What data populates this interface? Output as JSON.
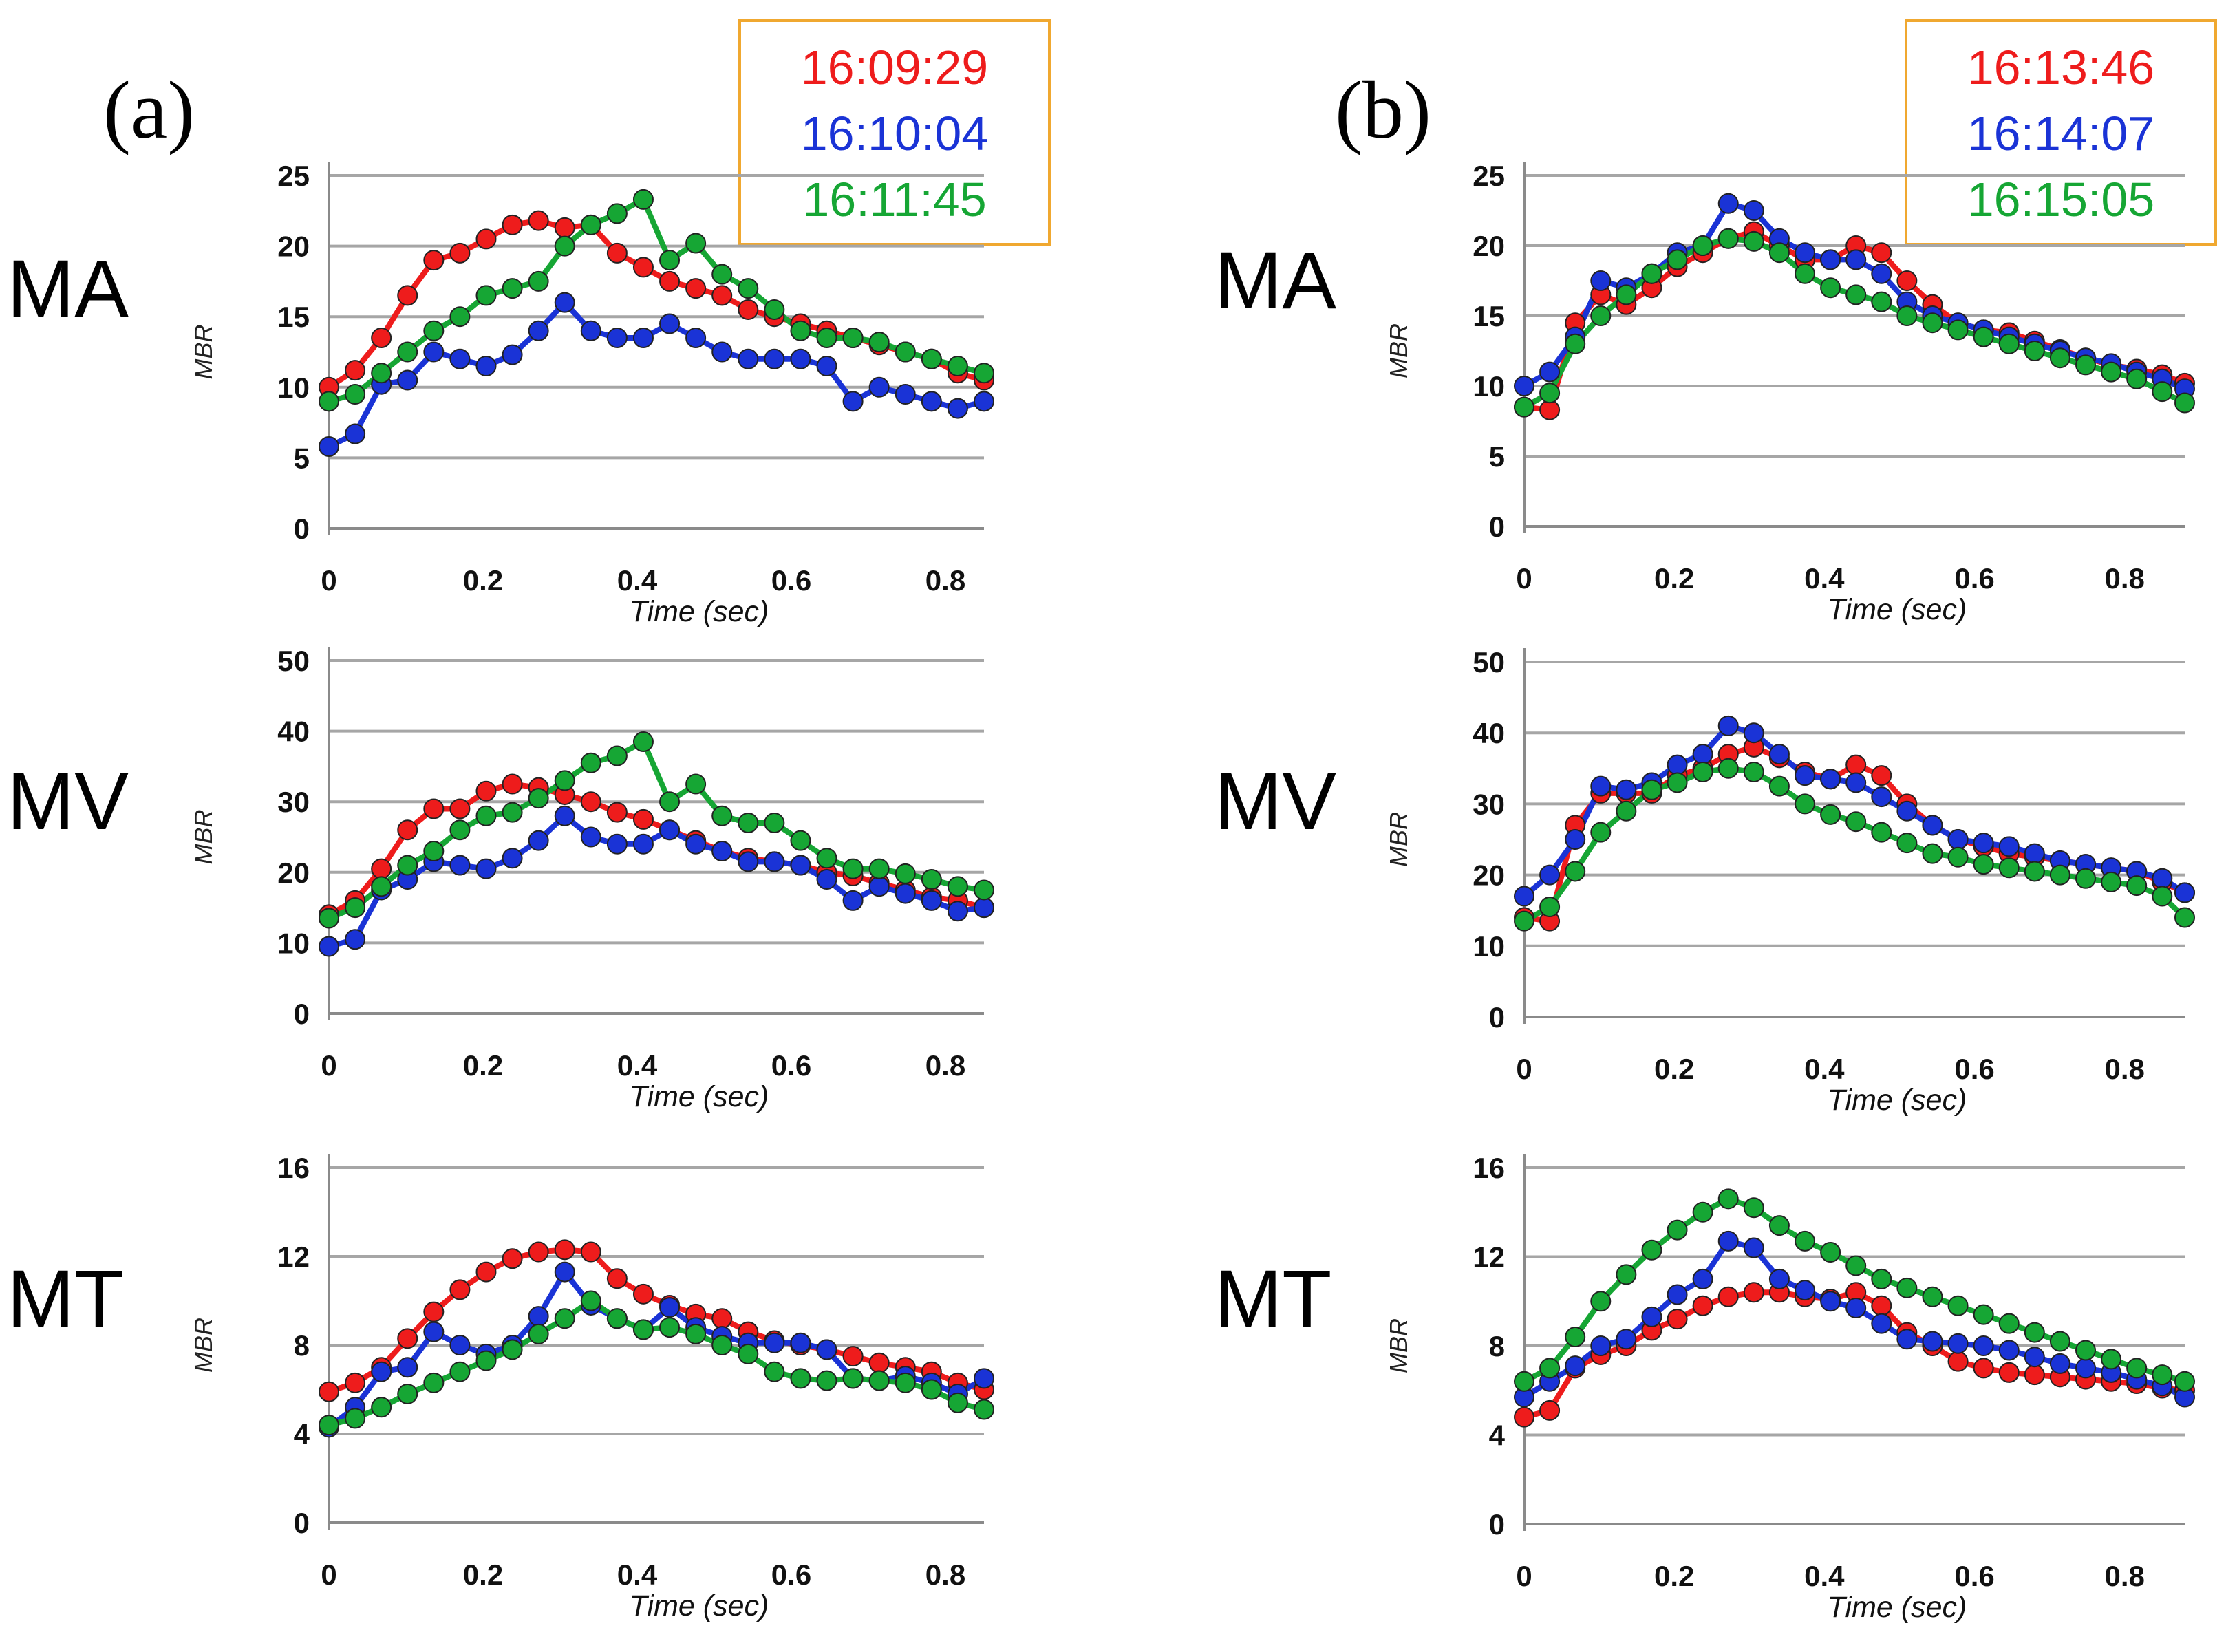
{
  "panels": [
    {
      "label": "(a)",
      "legend": [
        {
          "text": "16:09:29",
          "color": "#ee1c1c"
        },
        {
          "text": "16:10:04",
          "color": "#1a33d6"
        },
        {
          "text": "16:11:45",
          "color": "#16a634"
        }
      ]
    },
    {
      "label": "(b)",
      "legend": [
        {
          "text": "16:13:46",
          "color": "#ee1c1c"
        },
        {
          "text": "16:14:07",
          "color": "#1a33d6"
        },
        {
          "text": "16:15:05",
          "color": "#16a634"
        }
      ]
    }
  ],
  "row_labels": [
    "MA",
    "MV",
    "MT"
  ],
  "chart_data": [
    {
      "type": "line",
      "panel": "(a)",
      "row": "MA",
      "xlabel": "Time (sec)",
      "ylabel": "MBR",
      "ylim": [
        0,
        25
      ],
      "yticks": [
        "0",
        "5",
        "10",
        "15",
        "20",
        "25"
      ],
      "xlim": [
        0,
        0.85
      ],
      "xticks": [
        "0",
        "0.2",
        "0.4",
        "0.6",
        "0.8"
      ],
      "x": [
        0,
        0.034,
        0.068,
        0.102,
        0.136,
        0.17,
        0.204,
        0.238,
        0.272,
        0.306,
        0.34,
        0.374,
        0.408,
        0.442,
        0.476,
        0.51,
        0.544,
        0.578,
        0.612,
        0.646,
        0.68,
        0.714,
        0.748,
        0.782,
        0.816,
        0.85
      ],
      "series": [
        {
          "color": "#ee1c1c",
          "values": [
            10,
            11.2,
            13.5,
            16.5,
            19,
            19.5,
            20.5,
            21.5,
            21.8,
            21.3,
            21.5,
            19.5,
            18.5,
            17.5,
            17,
            16.5,
            15.5,
            15,
            14.5,
            14,
            13.5,
            13,
            12.5,
            12,
            11,
            10.5
          ]
        },
        {
          "color": "#1a33d6",
          "values": [
            5.8,
            6.7,
            10.2,
            10.5,
            12.5,
            12,
            11.5,
            12.3,
            14,
            16,
            14,
            13.5,
            13.5,
            14.5,
            13.5,
            12.5,
            12,
            12,
            12,
            11.5,
            9,
            10,
            9.5,
            9,
            8.5,
            9
          ]
        },
        {
          "color": "#16a634",
          "values": [
            9,
            9.5,
            11,
            12.5,
            14,
            15,
            16.5,
            17,
            17.5,
            20,
            21.5,
            22.3,
            23.3,
            19,
            20.2,
            18,
            17,
            15.5,
            14,
            13.5,
            13.5,
            13.2,
            12.5,
            12,
            11.5,
            11
          ]
        }
      ]
    },
    {
      "type": "line",
      "panel": "(a)",
      "row": "MV",
      "xlabel": "Time (sec)",
      "ylabel": "MBR",
      "ylim": [
        0,
        50
      ],
      "yticks": [
        "0",
        "10",
        "20",
        "30",
        "40",
        "50"
      ],
      "xlim": [
        0,
        0.85
      ],
      "xticks": [
        "0",
        "0.2",
        "0.4",
        "0.6",
        "0.8"
      ],
      "x": [
        0,
        0.034,
        0.068,
        0.102,
        0.136,
        0.17,
        0.204,
        0.238,
        0.272,
        0.306,
        0.34,
        0.374,
        0.408,
        0.442,
        0.476,
        0.51,
        0.544,
        0.578,
        0.612,
        0.646,
        0.68,
        0.714,
        0.748,
        0.782,
        0.816,
        0.85
      ],
      "series": [
        {
          "color": "#ee1c1c",
          "values": [
            14,
            16,
            20.5,
            26,
            29,
            29,
            31.5,
            32.5,
            32,
            31,
            30,
            28.5,
            27.5,
            26,
            24.5,
            23,
            22,
            21.5,
            21,
            20,
            19.5,
            18.5,
            17.5,
            16.5,
            16,
            15
          ]
        },
        {
          "color": "#1a33d6",
          "values": [
            9.5,
            10.5,
            17.5,
            19,
            21.5,
            21,
            20.5,
            22,
            24.5,
            28,
            25,
            24,
            24,
            26,
            24,
            23,
            21.5,
            21.5,
            21,
            19,
            16,
            18,
            17,
            16,
            14.5,
            15
          ]
        },
        {
          "color": "#16a634",
          "values": [
            13.5,
            15,
            18,
            21,
            23,
            26,
            28,
            28.5,
            30.5,
            33,
            35.5,
            36.5,
            38.5,
            30,
            32.5,
            28,
            27,
            27,
            24.5,
            22,
            20.5,
            20.5,
            19.8,
            19,
            18,
            17.5
          ]
        }
      ]
    },
    {
      "type": "line",
      "panel": "(a)",
      "row": "MT",
      "xlabel": "Time (sec)",
      "ylabel": "MBR",
      "ylim": [
        0,
        16
      ],
      "yticks": [
        "0",
        "4",
        "8",
        "12",
        "16"
      ],
      "xlim": [
        0,
        0.85
      ],
      "xticks": [
        "0",
        "0.2",
        "0.4",
        "0.6",
        "0.8"
      ],
      "x": [
        0,
        0.034,
        0.068,
        0.102,
        0.136,
        0.17,
        0.204,
        0.238,
        0.272,
        0.306,
        0.34,
        0.374,
        0.408,
        0.442,
        0.476,
        0.51,
        0.544,
        0.578,
        0.612,
        0.646,
        0.68,
        0.714,
        0.748,
        0.782,
        0.816,
        0.85
      ],
      "series": [
        {
          "color": "#ee1c1c",
          "values": [
            5.9,
            6.3,
            7,
            8.3,
            9.5,
            10.5,
            11.3,
            11.9,
            12.2,
            12.3,
            12.2,
            11,
            10.3,
            9.8,
            9.4,
            9.2,
            8.6,
            8.2,
            8,
            7.8,
            7.5,
            7.2,
            7,
            6.8,
            6.3,
            6
          ]
        },
        {
          "color": "#1a33d6",
          "values": [
            4.3,
            5.2,
            6.8,
            7,
            8.6,
            8,
            7.6,
            8,
            9.3,
            11.3,
            9.8,
            9.2,
            8.7,
            9.7,
            8.8,
            8.4,
            8.1,
            8.1,
            8.1,
            7.8,
            6.5,
            6.4,
            6.6,
            6.3,
            5.8,
            6.5
          ]
        },
        {
          "color": "#16a634",
          "values": [
            4.4,
            4.7,
            5.2,
            5.8,
            6.3,
            6.8,
            7.3,
            7.8,
            8.5,
            9.2,
            10,
            9.2,
            8.7,
            8.8,
            8.5,
            8,
            7.6,
            6.8,
            6.5,
            6.4,
            6.5,
            6.4,
            6.3,
            6,
            5.4,
            5.1
          ]
        }
      ]
    },
    {
      "type": "line",
      "panel": "(b)",
      "row": "MA",
      "xlabel": "Time (sec)",
      "ylabel": "MBR",
      "ylim": [
        0,
        25
      ],
      "yticks": [
        "0",
        "5",
        "10",
        "15",
        "20",
        "25"
      ],
      "xlim": [
        0,
        0.88
      ],
      "xticks": [
        "0",
        "0.2",
        "0.4",
        "0.6",
        "0.8"
      ],
      "x": [
        0,
        0.034,
        0.068,
        0.102,
        0.136,
        0.17,
        0.204,
        0.238,
        0.272,
        0.306,
        0.34,
        0.374,
        0.408,
        0.442,
        0.476,
        0.51,
        0.544,
        0.578,
        0.612,
        0.646,
        0.68,
        0.714,
        0.748,
        0.782,
        0.816,
        0.85,
        0.88
      ],
      "series": [
        {
          "color": "#ee1c1c",
          "values": [
            8.5,
            8.3,
            14.5,
            16.5,
            15.8,
            17,
            18.5,
            19.5,
            20.5,
            21,
            20,
            19,
            19,
            20,
            19.5,
            17.5,
            15.8,
            14.5,
            14,
            13.8,
            13.2,
            12.6,
            12,
            11.5,
            11.2,
            10.8,
            10.2
          ]
        },
        {
          "color": "#1a33d6",
          "values": [
            10,
            11,
            13.5,
            17.5,
            17,
            18,
            19.5,
            20,
            23,
            22.5,
            20.5,
            19.5,
            19,
            19,
            18,
            16,
            15,
            14.5,
            14,
            13.5,
            13,
            12.5,
            12,
            11.6,
            11,
            10.5,
            9.8
          ]
        },
        {
          "color": "#16a634",
          "values": [
            8.5,
            9.5,
            13,
            15,
            16.5,
            18,
            19,
            20,
            20.5,
            20.3,
            19.5,
            18,
            17,
            16.5,
            16,
            15,
            14.5,
            14,
            13.5,
            13,
            12.5,
            12,
            11.5,
            11,
            10.5,
            9.6,
            8.8
          ]
        }
      ]
    },
    {
      "type": "line",
      "panel": "(b)",
      "row": "MV",
      "xlabel": "Time (sec)",
      "ylabel": "MBR",
      "ylim": [
        0,
        50
      ],
      "yticks": [
        "0",
        "10",
        "20",
        "30",
        "40",
        "50"
      ],
      "xlim": [
        0,
        0.88
      ],
      "xticks": [
        "0",
        "0.2",
        "0.4",
        "0.6",
        "0.8"
      ],
      "x": [
        0,
        0.034,
        0.068,
        0.102,
        0.136,
        0.17,
        0.204,
        0.238,
        0.272,
        0.306,
        0.34,
        0.374,
        0.408,
        0.442,
        0.476,
        0.51,
        0.544,
        0.578,
        0.612,
        0.646,
        0.68,
        0.714,
        0.748,
        0.782,
        0.816,
        0.85,
        0.88
      ],
      "series": [
        {
          "color": "#ee1c1c",
          "values": [
            14,
            13.5,
            27,
            31.5,
            31.5,
            31.5,
            34,
            35,
            37,
            38,
            36.5,
            34.5,
            33.5,
            35.5,
            34,
            30,
            27,
            25,
            24,
            23,
            22.5,
            22,
            21.5,
            21,
            20.5,
            19,
            17.5
          ]
        },
        {
          "color": "#1a33d6",
          "values": [
            17,
            20,
            25,
            32.5,
            32,
            33,
            35.5,
            37,
            41,
            40,
            37,
            34,
            33.5,
            33,
            31,
            29,
            27,
            25,
            24.5,
            24,
            23,
            22,
            21.5,
            21,
            20.5,
            19.5,
            17.5
          ]
        },
        {
          "color": "#16a634",
          "values": [
            13.5,
            15.5,
            20.5,
            26,
            29,
            32,
            33,
            34.5,
            35,
            34.5,
            32.5,
            30,
            28.5,
            27.5,
            26,
            24.5,
            23,
            22.5,
            21.5,
            21,
            20.5,
            20,
            19.5,
            19,
            18.5,
            17,
            14
          ]
        }
      ]
    },
    {
      "type": "line",
      "panel": "(b)",
      "row": "MT",
      "xlabel": "Time (sec)",
      "ylabel": "MBR",
      "ylim": [
        0,
        16
      ],
      "yticks": [
        "0",
        "4",
        "8",
        "12",
        "16"
      ],
      "xlim": [
        0,
        0.88
      ],
      "xticks": [
        "0",
        "0.2",
        "0.4",
        "0.6",
        "0.8"
      ],
      "x": [
        0,
        0.034,
        0.068,
        0.102,
        0.136,
        0.17,
        0.204,
        0.238,
        0.272,
        0.306,
        0.34,
        0.374,
        0.408,
        0.442,
        0.476,
        0.51,
        0.544,
        0.578,
        0.612,
        0.646,
        0.68,
        0.714,
        0.748,
        0.782,
        0.816,
        0.85,
        0.88
      ],
      "series": [
        {
          "color": "#ee1c1c",
          "values": [
            4.8,
            5.1,
            7,
            7.6,
            8,
            8.7,
            9.2,
            9.8,
            10.2,
            10.4,
            10.4,
            10.2,
            10.1,
            10.4,
            9.8,
            8.6,
            8,
            7.3,
            7,
            6.8,
            6.7,
            6.6,
            6.5,
            6.4,
            6.3,
            6.1,
            6
          ]
        },
        {
          "color": "#1a33d6",
          "values": [
            5.7,
            6.4,
            7.1,
            8,
            8.3,
            9.3,
            10.3,
            11,
            12.7,
            12.4,
            11,
            10.5,
            10,
            9.7,
            9,
            8.3,
            8.2,
            8.1,
            8,
            7.8,
            7.5,
            7.2,
            7,
            6.8,
            6.5,
            6.2,
            5.7
          ]
        },
        {
          "color": "#16a634",
          "values": [
            6.4,
            7,
            8.4,
            10,
            11.2,
            12.3,
            13.2,
            14,
            14.6,
            14.2,
            13.4,
            12.7,
            12.2,
            11.6,
            11,
            10.6,
            10.2,
            9.8,
            9.4,
            9,
            8.6,
            8.2,
            7.8,
            7.4,
            7,
            6.7,
            6.4
          ]
        }
      ]
    }
  ]
}
